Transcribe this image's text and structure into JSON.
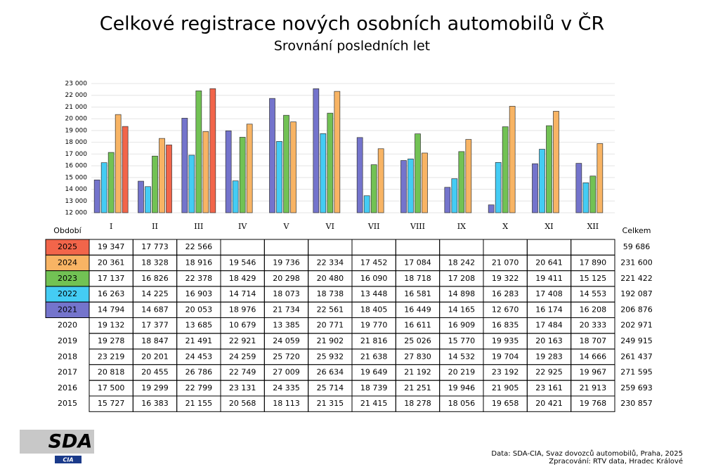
{
  "chart_data": {
    "type": "bar",
    "title": "Celkové registrace nových osobních automobilů v ČR",
    "subtitle": "Srovnání posledních let",
    "categories": [
      "I",
      "II",
      "III",
      "IV",
      "V",
      "VI",
      "VII",
      "VIII",
      "IX",
      "X",
      "XI",
      "XII"
    ],
    "ylim": [
      12000,
      23000
    ],
    "yticks": [
      {
        "value": 12000,
        "label": "12 000"
      },
      {
        "value": 13000,
        "label": "13 000"
      },
      {
        "value": 14000,
        "label": "14 000"
      },
      {
        "value": 15000,
        "label": "15 000"
      },
      {
        "value": 16000,
        "label": "16 000"
      },
      {
        "value": 17000,
        "label": "17 000"
      },
      {
        "value": 18000,
        "label": "18 000"
      },
      {
        "value": 19000,
        "label": "19 000"
      },
      {
        "value": 20000,
        "label": "20 000"
      },
      {
        "value": 21000,
        "label": "21 000"
      },
      {
        "value": 22000,
        "label": "22 000"
      },
      {
        "value": 23000,
        "label": "23 000"
      }
    ],
    "grid": true,
    "series": [
      {
        "name": "2021",
        "color": "#7474cc",
        "values": [
          14794,
          14687,
          20053,
          18976,
          21734,
          22561,
          18405,
          16449,
          14165,
          12670,
          16174,
          16208
        ],
        "value_labels": [
          "14 794",
          "14 687",
          "20 053",
          "18 976",
          "21 734",
          "22 561",
          "18 405",
          "16 449",
          "14 165",
          "12 670",
          "16 174",
          "16 208"
        ],
        "total": "206 876"
      },
      {
        "name": "2022",
        "color": "#44ccf4",
        "values": [
          16263,
          14225,
          16903,
          14714,
          18073,
          18738,
          13448,
          16581,
          14898,
          16283,
          17408,
          14553
        ],
        "value_labels": [
          "16 263",
          "14 225",
          "16 903",
          "14 714",
          "18 073",
          "18 738",
          "13 448",
          "16 581",
          "14 898",
          "16 283",
          "17 408",
          "14 553"
        ],
        "total": "192 087"
      },
      {
        "name": "2023",
        "color": "#72c254",
        "values": [
          17137,
          16826,
          22378,
          18429,
          20298,
          20480,
          16090,
          18718,
          17208,
          19322,
          19411,
          15125
        ],
        "value_labels": [
          "17 137",
          "16 826",
          "22 378",
          "18 429",
          "20 298",
          "20 480",
          "16 090",
          "18 718",
          "17 208",
          "19 322",
          "19 411",
          "15 125"
        ],
        "total": "221 422"
      },
      {
        "name": "2024",
        "color": "#f8b464",
        "values": [
          20361,
          18328,
          18916,
          19546,
          19736,
          22334,
          17452,
          17084,
          18242,
          21070,
          20641,
          17890
        ],
        "value_labels": [
          "20 361",
          "18 328",
          "18 916",
          "19 546",
          "19 736",
          "22 334",
          "17 452",
          "17 084",
          "18 242",
          "21 070",
          "20 641",
          "17 890"
        ],
        "total": "231 600"
      },
      {
        "name": "2025",
        "color": "#f2654a",
        "values": [
          19347,
          17773,
          22566,
          null,
          null,
          null,
          null,
          null,
          null,
          null,
          null,
          null
        ],
        "value_labels": [
          "19 347",
          "17 773",
          "22 566",
          null,
          null,
          null,
          null,
          null,
          null,
          null,
          null,
          null
        ],
        "total": "59 686"
      }
    ],
    "table_header": "Období",
    "total_header": "Celkem",
    "history": [
      {
        "name": "2020",
        "cells": [
          "19 132",
          "17 377",
          "13 685",
          "10 679",
          "13 385",
          "20 771",
          "19 770",
          "16 611",
          "16 909",
          "16 835",
          "17 484",
          "20 333"
        ],
        "total": "202 971"
      },
      {
        "name": "2019",
        "cells": [
          "19 278",
          "18 847",
          "21 491",
          "22 921",
          "24 059",
          "21 902",
          "21 816",
          "25 026",
          "15 770",
          "19 935",
          "20 163",
          "18 707"
        ],
        "total": "249 915"
      },
      {
        "name": "2018",
        "cells": [
          "23 219",
          "20 201",
          "24 453",
          "24 259",
          "25 720",
          "25 932",
          "21 638",
          "27 830",
          "14 532",
          "19 704",
          "19 283",
          "14 666"
        ],
        "total": "261 437"
      },
      {
        "name": "2017",
        "cells": [
          "20 818",
          "20 455",
          "26 786",
          "22 749",
          "27 009",
          "26 634",
          "19 649",
          "21 192",
          "20 219",
          "23 192",
          "22 925",
          "19 967"
        ],
        "total": "271 595"
      },
      {
        "name": "2016",
        "cells": [
          "17 500",
          "19 299",
          "22 799",
          "23 131",
          "24 335",
          "25 714",
          "18 739",
          "21 251",
          "19 946",
          "21 905",
          "23 161",
          "21 913"
        ],
        "total": "259 693"
      },
      {
        "name": "2015",
        "cells": [
          "15 727",
          "16 383",
          "21 155",
          "20 568",
          "18 113",
          "21 315",
          "21 415",
          "18 278",
          "18 056",
          "19 658",
          "20 421",
          "19 768"
        ],
        "total": "230 857"
      }
    ]
  },
  "footer": {
    "logo": "SDA",
    "logo_sub": "CIA",
    "source": "Data: SDA-CIA, Svaz dovozců automobilů, Praha, 2025",
    "processing": "Zpracování: RTV data, Hradec Králové"
  }
}
